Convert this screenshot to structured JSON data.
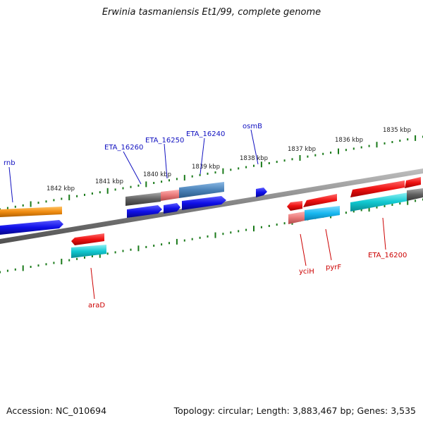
{
  "title": "Erwinia tasmaniensis Et1/99, complete genome",
  "accession": "Accession: NC_010694",
  "topology": "Topology: circular; Length: 3,883,467 bp; Genes: 3,535",
  "scale_ticks": [
    "1842 kbp",
    "1841 kbp",
    "1840 kbp",
    "1839 kbp",
    "1838 kbp",
    "1837 kbp",
    "1836 kbp",
    "1835 kbp"
  ],
  "forward_genes": [
    "rnb",
    "ETA_16260",
    "ETA_16250",
    "ETA_16240",
    "osmB"
  ],
  "reverse_genes": [
    "araD",
    "yciH",
    "pyrF",
    "ETA_16200"
  ],
  "colors": {
    "forward_label": "#1010c0",
    "reverse_label": "#cc0000",
    "backbone": "#808080",
    "tick": "#1a7a1a",
    "cds_blue": "#1010e8",
    "cds_red": "#ee1111",
    "cds_cyan": "#10c8d0",
    "orange": "#f08c10",
    "gray": "#606060",
    "pink": "#e87878",
    "steel": "#4a82b8",
    "sky": "#18b8f0"
  }
}
